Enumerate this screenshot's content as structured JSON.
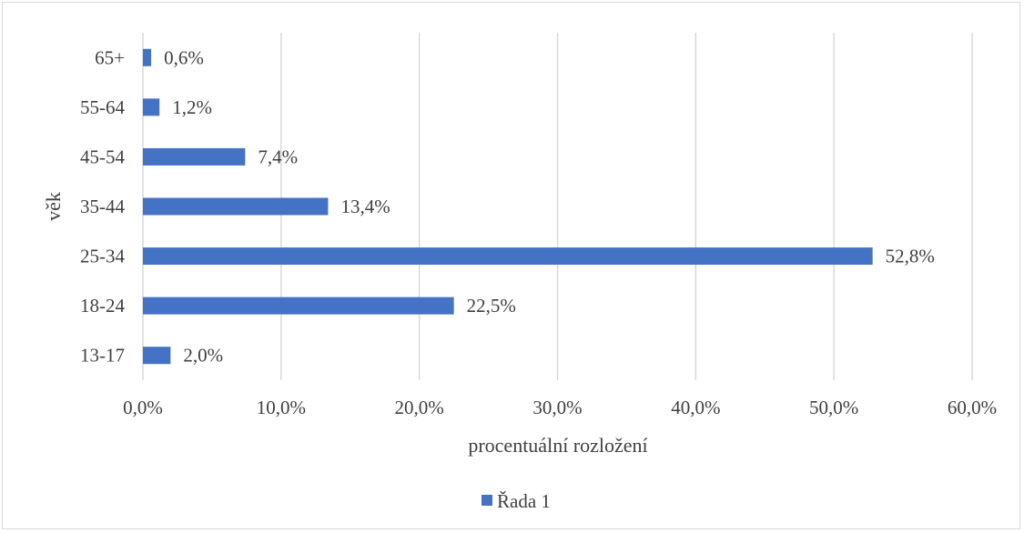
{
  "chart_data": {
    "type": "bar",
    "orientation": "horizontal",
    "categories": [
      "13-17",
      "18-24",
      "25-34",
      "35-44",
      "45-54",
      "55-64",
      "65+"
    ],
    "series": [
      {
        "name": "Řada 1",
        "values": [
          2.0,
          22.5,
          52.8,
          13.4,
          7.4,
          1.2,
          0.6
        ],
        "data_labels": [
          "2,0%",
          "22,5%",
          "52,8%",
          "13,4%",
          "7,4%",
          "1,2%",
          "0,6%"
        ],
        "color": "#4472c4"
      }
    ],
    "xlabel": "procentuální rozložení",
    "ylabel": "věk",
    "xlim": [
      0,
      60
    ],
    "xticks": [
      0,
      10,
      20,
      30,
      40,
      50,
      60
    ],
    "xtick_labels": [
      "0,0%",
      "10,0%",
      "20,0%",
      "30,0%",
      "40,0%",
      "50,0%",
      "60,0%"
    ],
    "grid": true,
    "legend_position": "bottom",
    "colors": {
      "bar": "#4472c4",
      "grid": "#d9d9d9",
      "text": "#404040"
    }
  }
}
